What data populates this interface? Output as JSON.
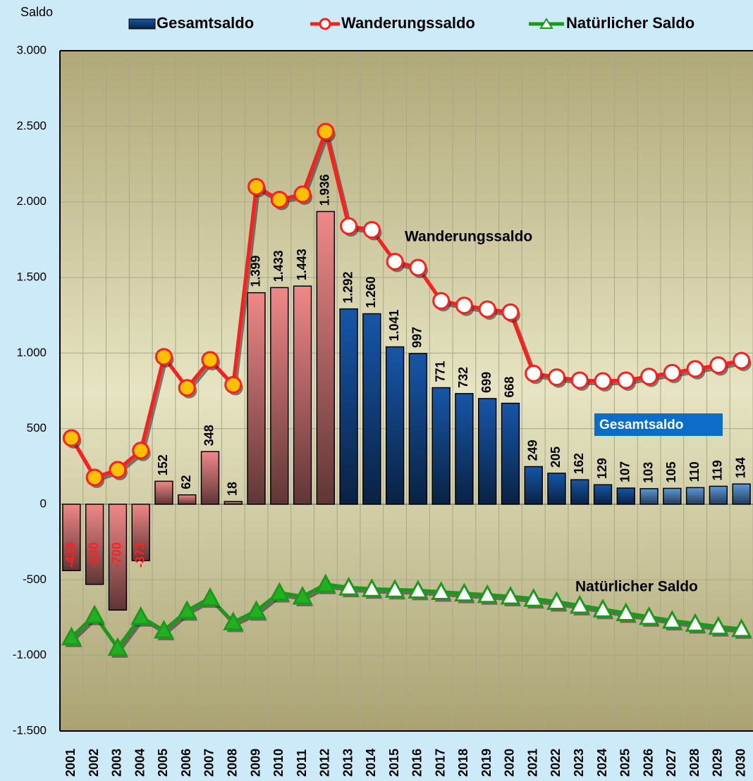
{
  "chart_data": {
    "type": "bar_line",
    "y_label": "Saldo",
    "categories": [
      "2001",
      "2002",
      "2003",
      "2004",
      "2005",
      "2006",
      "2007",
      "2008",
      "2009",
      "2010",
      "2011",
      "2012",
      "2013",
      "2014",
      "2015",
      "2016",
      "2017",
      "2018",
      "2019",
      "2020",
      "2021",
      "2022",
      "2023",
      "2024",
      "2025",
      "2026",
      "2027",
      "2028",
      "2029",
      "2030"
    ],
    "series": [
      {
        "name": "Gesamtsaldo",
        "kind": "bar",
        "values": [
          -439,
          -530,
          -700,
          -373,
          152,
          62,
          348,
          18,
          1399,
          1433,
          1443,
          1936,
          1292,
          1260,
          1041,
          997,
          771,
          732,
          699,
          668,
          249,
          205,
          162,
          129,
          107,
          103,
          105,
          110,
          119,
          134
        ],
        "value_labels": [
          "-439",
          "-530",
          "-700",
          "-373",
          "152",
          "62",
          "348",
          "18",
          "1.399",
          "1.433",
          "1.443",
          "1.936",
          "1.292",
          "1.260",
          "1.041",
          "997",
          "771",
          "732",
          "699",
          "668",
          "249",
          "205",
          "162",
          "129",
          "107",
          "103",
          "105",
          "110",
          "119",
          "134"
        ],
        "color": "#1656a8",
        "bar_colors": [
          "#f08888",
          "#f08888",
          "#f08888",
          "#f08888",
          "#f08888",
          "#f08888",
          "#f08888",
          "#f08888",
          "#f08888",
          "#f08888",
          "#f08888",
          "#f08888",
          "#1656a8",
          "#1656a8",
          "#1656a8",
          "#1656a8",
          "#1656a8",
          "#1656a8",
          "#1656a8",
          "#1656a8",
          "#1656a8",
          "#1656a8",
          "#1656a8",
          "#1656a8",
          "#1656a8",
          "#5a98dc",
          "#5a98dc",
          "#5a98dc",
          "#5a98dc",
          "#5a98dc"
        ]
      },
      {
        "name": "Wanderungssaldo",
        "kind": "line",
        "color": "#ff1e1e",
        "values": [
          438,
          177,
          228,
          355,
          975,
          770,
          955,
          790,
          2100,
          2015,
          2050,
          2465,
          1840,
          1815,
          1605,
          1565,
          1345,
          1315,
          1290,
          1270,
          865,
          840,
          820,
          815,
          820,
          845,
          870,
          895,
          920,
          950
        ],
        "marker_colors": [
          "#ffc000",
          "#ffc000",
          "#ffc000",
          "#ffc000",
          "#ffc000",
          "#ffc000",
          "#ffc000",
          "#ffc000",
          "#ffc000",
          "#ffc000",
          "#ffc000",
          "#ffc000",
          "#ffffff",
          "#ffffff",
          "#ffffff",
          "#ffffff",
          "#ffffff",
          "#ffffff",
          "#ffffff",
          "#ffffff",
          "#ffffff",
          "#ffffff",
          "#ffffff",
          "#ffffff",
          "#ffffff",
          "#ffffff",
          "#ffffff",
          "#ffffff",
          "#ffffff",
          "#ffffff"
        ]
      },
      {
        "name": "Natürlicher Saldo",
        "kind": "line",
        "color": "#1a9a1a",
        "values": [
          -880,
          -735,
          -950,
          -745,
          -835,
          -705,
          -620,
          -780,
          -705,
          -585,
          -610,
          -530,
          -550,
          -560,
          -565,
          -570,
          -580,
          -590,
          -600,
          -610,
          -625,
          -645,
          -670,
          -695,
          -720,
          -745,
          -770,
          -790,
          -810,
          -825
        ],
        "marker_colors": [
          "#22b022",
          "#22b022",
          "#22b022",
          "#22b022",
          "#22b022",
          "#22b022",
          "#22b022",
          "#22b022",
          "#22b022",
          "#22b022",
          "#22b022",
          "#22b022",
          "#ffffff",
          "#ffffff",
          "#ffffff",
          "#ffffff",
          "#ffffff",
          "#ffffff",
          "#ffffff",
          "#ffffff",
          "#ffffff",
          "#ffffff",
          "#ffffff",
          "#ffffff",
          "#ffffff",
          "#ffffff",
          "#ffffff",
          "#ffffff",
          "#ffffff",
          "#ffffff"
        ]
      }
    ],
    "annotations": [
      "Wanderungssaldo",
      "Gesamtsaldo",
      "Natürlicher Saldo"
    ],
    "ylim": [
      -1500,
      3000
    ],
    "yticks": [
      {
        "value": -1500,
        "label": "-1.500"
      },
      {
        "value": -1000,
        "label": "-1.000"
      },
      -500,
      0,
      500,
      {
        "value": 1000,
        "label": "1.000"
      },
      {
        "value": 1500,
        "label": "1.500"
      },
      {
        "value": 2000,
        "label": "2.000"
      },
      {
        "value": 2500,
        "label": "2.500"
      },
      {
        "value": 3000,
        "label": "3.000"
      }
    ],
    "grid": true,
    "legend": "top"
  }
}
